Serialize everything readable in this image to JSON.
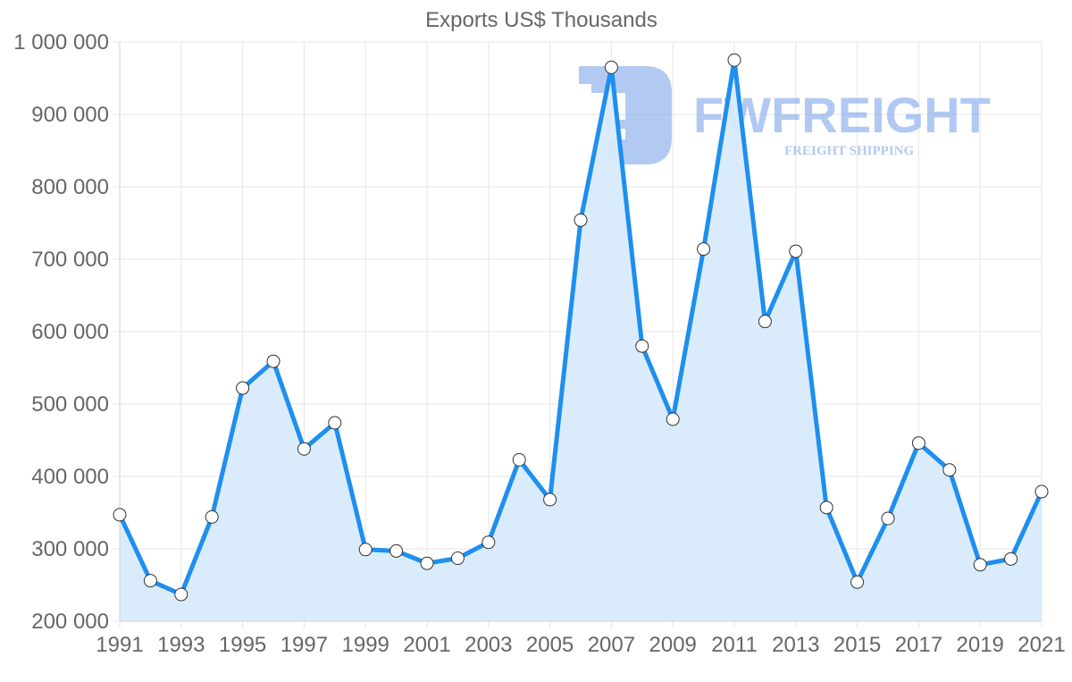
{
  "chart_data": {
    "type": "line",
    "title": "Exports US$ Thousands",
    "xlabel": "",
    "ylabel": "",
    "x": [
      1991,
      1992,
      1993,
      1994,
      1995,
      1996,
      1997,
      1998,
      1999,
      2000,
      2001,
      2002,
      2003,
      2004,
      2005,
      2006,
      2007,
      2008,
      2009,
      2010,
      2011,
      2012,
      2013,
      2014,
      2015,
      2016,
      2017,
      2018,
      2019,
      2020,
      2021
    ],
    "series": [
      {
        "name": "Exports US$ Thousands",
        "values": [
          347000,
          256000,
          237000,
          344000,
          522000,
          559000,
          438000,
          474000,
          299000,
          297000,
          280000,
          287000,
          309000,
          423000,
          368000,
          754000,
          965000,
          580000,
          479000,
          714000,
          975000,
          614000,
          711000,
          357000,
          254000,
          342000,
          446000,
          409000,
          278000,
          286000,
          379000
        ]
      }
    ],
    "ylim": [
      200000,
      1000000
    ],
    "yticks": [
      200000,
      300000,
      400000,
      500000,
      600000,
      700000,
      800000,
      900000,
      1000000
    ],
    "ytick_labels": [
      "200 000",
      "300 000",
      "400 000",
      "500 000",
      "600 000",
      "700 000",
      "800 000",
      "900 000",
      "1 000 000"
    ],
    "xtick_labels": [
      "1991",
      "1993",
      "1995",
      "1997",
      "1999",
      "2001",
      "2003",
      "2005",
      "2007",
      "2009",
      "2011",
      "2013",
      "2015",
      "2017",
      "2019",
      "2021"
    ],
    "grid": true,
    "fill": true,
    "legend": "none",
    "colors": {
      "line": "#1e8fef",
      "fill": "#d8ebfb",
      "point_fill": "#ffffff",
      "point_stroke": "#333333"
    }
  },
  "watermark": {
    "brand": "FWFREIGHT",
    "tagline": "FREIGHT SHIPPING",
    "color": "#7ea6ea"
  }
}
